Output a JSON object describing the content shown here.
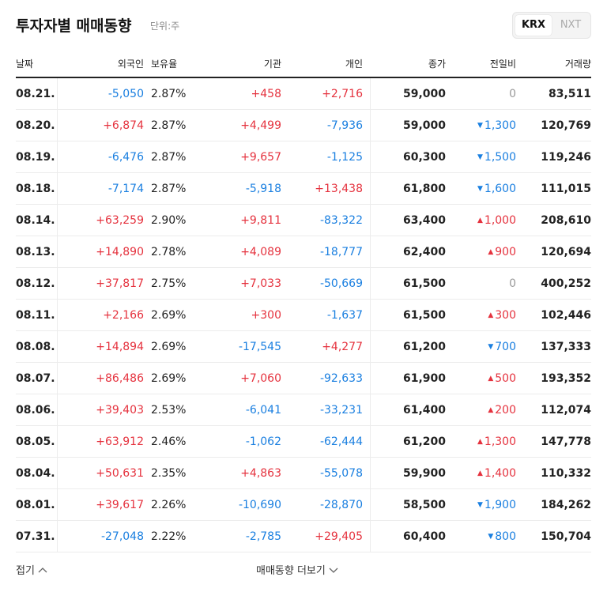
{
  "header": {
    "title": "투자자별 매매동향",
    "unit": "단위:주",
    "tabs": [
      "KRX",
      "NXT"
    ]
  },
  "table": {
    "columns": [
      "날짜",
      "외국인",
      "보유율",
      "기관",
      "개인",
      "종가",
      "전일비",
      "거래량"
    ],
    "rows": [
      [
        "08.21.",
        "-5,050",
        "2.87%",
        "+458",
        "+2,716",
        "59,000",
        "0",
        "83,511"
      ],
      [
        "08.20.",
        "+6,874",
        "2.87%",
        "+4,499",
        "-7,936",
        "59,000",
        "1,300",
        "120,769"
      ],
      [
        "08.19.",
        "-6,476",
        "2.87%",
        "+9,657",
        "-1,125",
        "60,300",
        "1,500",
        "119,246"
      ],
      [
        "08.18.",
        "-7,174",
        "2.87%",
        "-5,918",
        "+13,438",
        "61,800",
        "1,600",
        "111,015"
      ],
      [
        "08.14.",
        "+63,259",
        "2.90%",
        "+9,811",
        "-83,322",
        "63,400",
        "1,000",
        "208,610"
      ],
      [
        "08.13.",
        "+14,890",
        "2.78%",
        "+4,089",
        "-18,777",
        "62,400",
        "900",
        "120,694"
      ],
      [
        "08.12.",
        "+37,817",
        "2.75%",
        "+7,033",
        "-50,669",
        "61,500",
        "0",
        "400,252"
      ],
      [
        "08.11.",
        "+2,166",
        "2.69%",
        "+300",
        "-1,637",
        "61,500",
        "300",
        "102,446"
      ],
      [
        "08.08.",
        "+14,894",
        "2.69%",
        "-17,545",
        "+4,277",
        "61,200",
        "700",
        "137,333"
      ],
      [
        "08.07.",
        "+86,486",
        "2.69%",
        "+7,060",
        "-92,633",
        "61,900",
        "500",
        "193,352"
      ],
      [
        "08.06.",
        "+39,403",
        "2.53%",
        "-6,041",
        "-33,231",
        "61,400",
        "200",
        "112,074"
      ],
      [
        "08.05.",
        "+63,912",
        "2.46%",
        "-1,062",
        "-62,444",
        "61,200",
        "1,300",
        "147,778"
      ],
      [
        "08.04.",
        "+50,631",
        "2.35%",
        "+4,863",
        "-55,078",
        "59,900",
        "1,400",
        "110,332"
      ],
      [
        "08.01.",
        "+39,617",
        "2.26%",
        "-10,690",
        "-28,870",
        "58,500",
        "1,900",
        "184,262"
      ],
      [
        "07.31.",
        "-27,048",
        "2.22%",
        "-2,785",
        "+29,405",
        "60,400",
        "800",
        "150,704"
      ]
    ],
    "change_direction": [
      "flat",
      "down",
      "down",
      "down",
      "up",
      "up",
      "flat",
      "up",
      "down",
      "up",
      "up",
      "up",
      "up",
      "down",
      "down"
    ]
  },
  "footer": {
    "collapse": "접기",
    "more": "매매동향 더보기"
  }
}
